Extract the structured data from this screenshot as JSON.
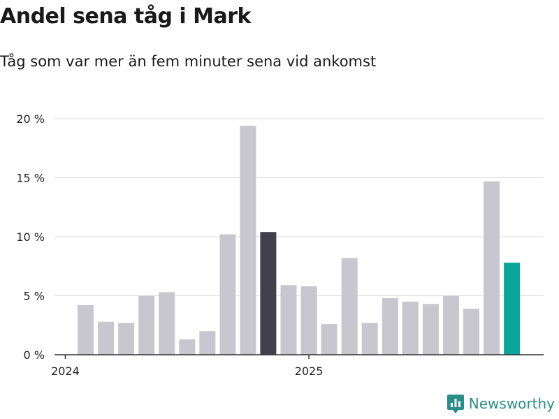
{
  "header": {
    "title": "Andel sena tåg i Mark",
    "subtitle": "Tåg som var mer än fem minuter sena vid ankomst"
  },
  "brand": {
    "name": "Newsworthy",
    "icon": "newsworthy-logo-icon"
  },
  "colors": {
    "default_bar": "#c8c7cf",
    "highlight_dark": "#42404c",
    "highlight_latest": "#0aa59b",
    "grid": "#dcdcdc",
    "brand": "#2c8c86"
  },
  "chart_data": {
    "type": "bar",
    "ylim": [
      0,
      20
    ],
    "ytick_values": [
      0,
      5,
      10,
      15,
      20
    ],
    "yticks": [
      "0 %",
      "5 %",
      "10 %",
      "15 %",
      "20 %"
    ],
    "xtick_labels": [
      {
        "label": "2024",
        "category": "2024-01"
      },
      {
        "label": "2025",
        "category": "2025-01"
      }
    ],
    "grid": "horizontal",
    "categories": [
      "2024-02",
      "2024-03",
      "2024-04",
      "2024-05",
      "2024-06",
      "2024-07",
      "2024-08",
      "2024-09",
      "2024-10",
      "2024-11",
      "2024-12",
      "2025-01",
      "2025-02",
      "2025-03",
      "2025-04",
      "2025-05",
      "2025-06",
      "2025-07",
      "2025-08",
      "2025-09",
      "2025-10",
      "2025-11"
    ],
    "values": [
      4.2,
      2.8,
      2.7,
      5.0,
      5.3,
      1.3,
      2.0,
      10.2,
      19.4,
      10.4,
      5.9,
      5.8,
      2.6,
      8.2,
      2.7,
      4.8,
      4.5,
      4.3,
      5.0,
      3.9,
      14.7,
      7.8
    ],
    "highlight": {
      "2024-11": "highlight_dark",
      "2025-11": "highlight_latest"
    }
  }
}
